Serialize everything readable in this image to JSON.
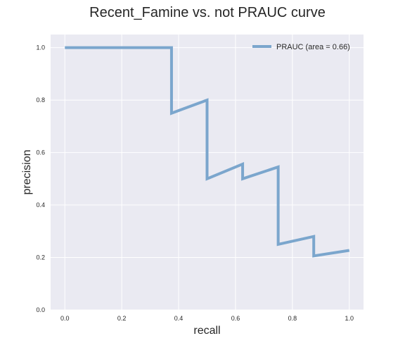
{
  "chart_data": {
    "type": "line",
    "title": "Recent_Famine vs. not PRAUC curve",
    "xlabel": "recall",
    "ylabel": "precision",
    "xlim": [
      -0.05,
      1.05
    ],
    "ylim": [
      0.0,
      1.05
    ],
    "xticks": [
      0.0,
      0.2,
      0.4,
      0.6,
      0.8,
      1.0
    ],
    "xtick_labels": [
      "0.0",
      "0.2",
      "0.4",
      "0.6",
      "0.8",
      "1.0"
    ],
    "yticks": [
      0.0,
      0.2,
      0.4,
      0.6,
      0.8,
      1.0
    ],
    "ytick_labels": [
      "0.0",
      "0.2",
      "0.4",
      "0.6",
      "0.8",
      "1.0"
    ],
    "grid": true,
    "legend_position": "top-right",
    "background_color": "#eaeaf2",
    "grid_color": "#ffffff",
    "series": [
      {
        "name": "PRAUC (area = 0.66)",
        "color": "#7ba6cd",
        "x": [
          0.0,
          0.375,
          0.375,
          0.5,
          0.5,
          0.625,
          0.625,
          0.75,
          0.75,
          0.875,
          0.875,
          1.0
        ],
        "y": [
          1.0,
          1.0,
          0.75,
          0.8,
          0.5,
          0.556,
          0.5,
          0.545,
          0.25,
          0.28,
          0.206,
          0.227
        ]
      }
    ]
  }
}
